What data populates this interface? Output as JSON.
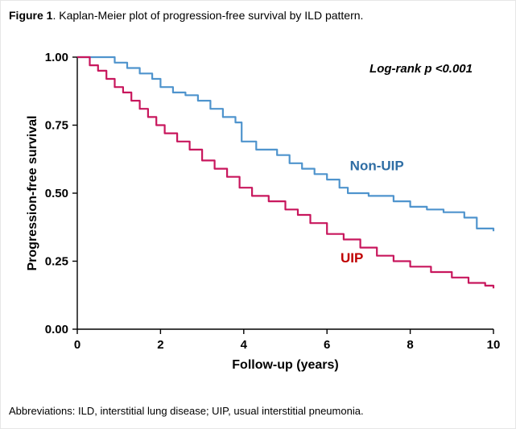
{
  "figure": {
    "label": "Figure 1",
    "caption_rest": ". Kaplan-Meier plot of progression-free survival by ILD pattern."
  },
  "annotation": "Log-rank p <0.001",
  "footnote": "Abbreviations: ILD, interstitial lung disease; UIP, usual interstitial pneumonia.",
  "chart_data": {
    "type": "line",
    "subtype": "kaplan-meier-step",
    "title": "",
    "xlabel": "Follow-up (years)",
    "ylabel": "Progression-free survival",
    "xlim": [
      0,
      10
    ],
    "ylim": [
      0.0,
      1.0
    ],
    "xticks": [
      0,
      2,
      4,
      6,
      8,
      10
    ],
    "yticks": [
      0.0,
      0.25,
      0.5,
      0.75,
      1.0
    ],
    "ytick_labels": [
      "0.00",
      "0.25",
      "0.50",
      "0.75",
      "1.00"
    ],
    "grid": false,
    "legend_position": "labels-on-plot",
    "axis_color": "#000000",
    "series": [
      {
        "name": "Non-UIP",
        "color": "#4f94cd",
        "label_color": "#2e6da4",
        "label_pos": {
          "x": 7.2,
          "y": 0.585
        },
        "x": [
          0,
          0.9,
          1.2,
          1.5,
          1.8,
          2.0,
          2.3,
          2.6,
          2.9,
          3.2,
          3.5,
          3.8,
          3.95,
          4.3,
          4.8,
          5.1,
          5.4,
          5.7,
          6.0,
          6.3,
          6.5,
          7.0,
          7.6,
          8.0,
          8.4,
          8.8,
          9.3,
          9.6,
          10
        ],
        "y": [
          1.0,
          0.98,
          0.96,
          0.94,
          0.92,
          0.89,
          0.87,
          0.86,
          0.84,
          0.81,
          0.78,
          0.76,
          0.69,
          0.66,
          0.64,
          0.61,
          0.59,
          0.57,
          0.55,
          0.52,
          0.5,
          0.49,
          0.47,
          0.45,
          0.44,
          0.43,
          0.41,
          0.37,
          0.36
        ]
      },
      {
        "name": "UIP",
        "color": "#c8175d",
        "label_color": "#c00000",
        "label_pos": {
          "x": 6.6,
          "y": 0.245
        },
        "x": [
          0,
          0.3,
          0.5,
          0.7,
          0.9,
          1.1,
          1.3,
          1.5,
          1.7,
          1.9,
          2.1,
          2.4,
          2.7,
          3.0,
          3.3,
          3.6,
          3.9,
          4.2,
          4.6,
          5.0,
          5.3,
          5.6,
          6.0,
          6.4,
          6.8,
          7.2,
          7.6,
          8.0,
          8.5,
          9.0,
          9.4,
          9.8,
          10
        ],
        "y": [
          1.0,
          0.97,
          0.95,
          0.92,
          0.89,
          0.87,
          0.84,
          0.81,
          0.78,
          0.75,
          0.72,
          0.69,
          0.66,
          0.62,
          0.59,
          0.56,
          0.52,
          0.49,
          0.47,
          0.44,
          0.42,
          0.39,
          0.35,
          0.33,
          0.3,
          0.27,
          0.25,
          0.23,
          0.21,
          0.19,
          0.17,
          0.16,
          0.15
        ]
      }
    ]
  }
}
